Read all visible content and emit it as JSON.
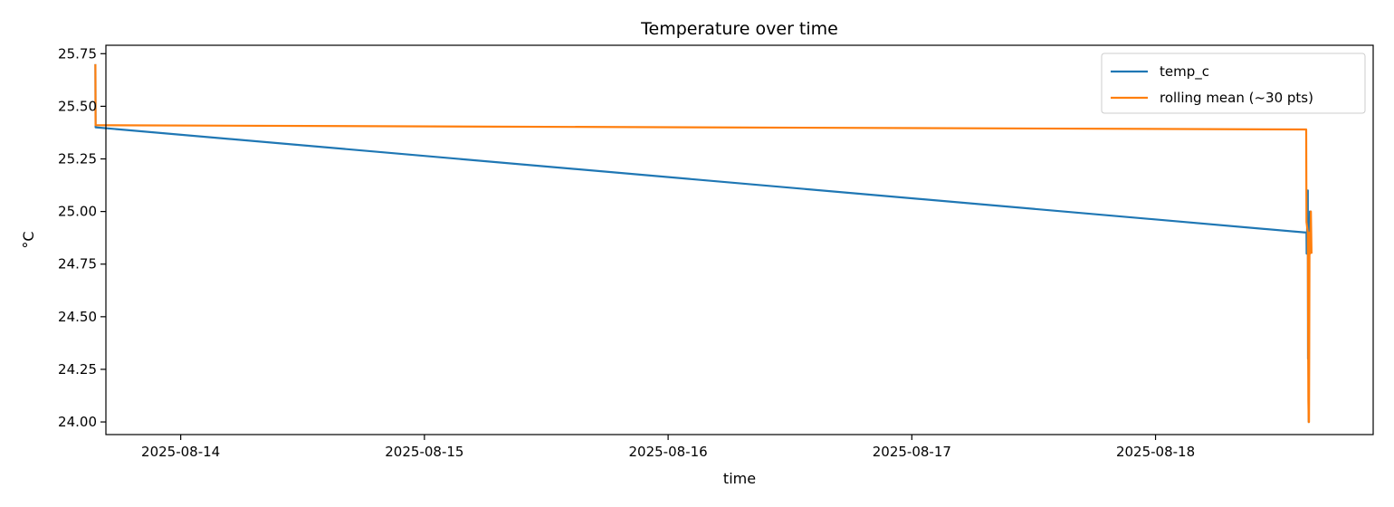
{
  "chart_data": {
    "type": "line",
    "title": "Temperature over time",
    "xlabel": "time",
    "ylabel": "°C",
    "xlim": [
      "2025-08-13T16:38",
      "2025-08-18T21:26"
    ],
    "ylim": [
      23.94,
      25.79
    ],
    "x_ticks": [
      "2025-08-14",
      "2025-08-15",
      "2025-08-16",
      "2025-08-17",
      "2025-08-18"
    ],
    "y_ticks": [
      "24.00",
      "24.25",
      "24.50",
      "24.75",
      "25.00",
      "25.25",
      "25.50",
      "25.75"
    ],
    "grid": false,
    "legend": "top-right",
    "series": [
      {
        "name": "temp_c",
        "color": "#1f77b4",
        "x": [
          "2025-08-13T15:36",
          "2025-08-13T15:37",
          "2025-08-18T14:52",
          "2025-08-18T14:53",
          "2025-08-18T15:00",
          "2025-08-18T15:01",
          "2025-08-18T15:02",
          "2025-08-18T15:05",
          "2025-08-18T15:06",
          "2025-08-18T15:08",
          "2025-08-18T15:10",
          "2025-08-18T15:12",
          "2025-08-18T15:15",
          "2025-08-18T15:20"
        ],
        "y": [
          25.7,
          25.4,
          24.9,
          24.8,
          25.1,
          24.3,
          24.6,
          24.0,
          24.4,
          24.9,
          24.8,
          25.0,
          24.9,
          24.8
        ]
      },
      {
        "name": "rolling mean (~30 pts)",
        "color": "#ff7f0e",
        "x": [
          "2025-08-13T15:36",
          "2025-08-13T15:37",
          "2025-08-18T14:50",
          "2025-08-18T14:52",
          "2025-08-18T15:00",
          "2025-08-18T15:03",
          "2025-08-18T15:05",
          "2025-08-18T15:07",
          "2025-08-18T15:10",
          "2025-08-18T15:14",
          "2025-08-18T15:18",
          "2025-08-18T15:22"
        ],
        "y": [
          25.7,
          25.41,
          25.39,
          24.95,
          24.9,
          24.1,
          24.0,
          24.0,
          24.9,
          24.8,
          25.0,
          24.8
        ]
      }
    ]
  }
}
